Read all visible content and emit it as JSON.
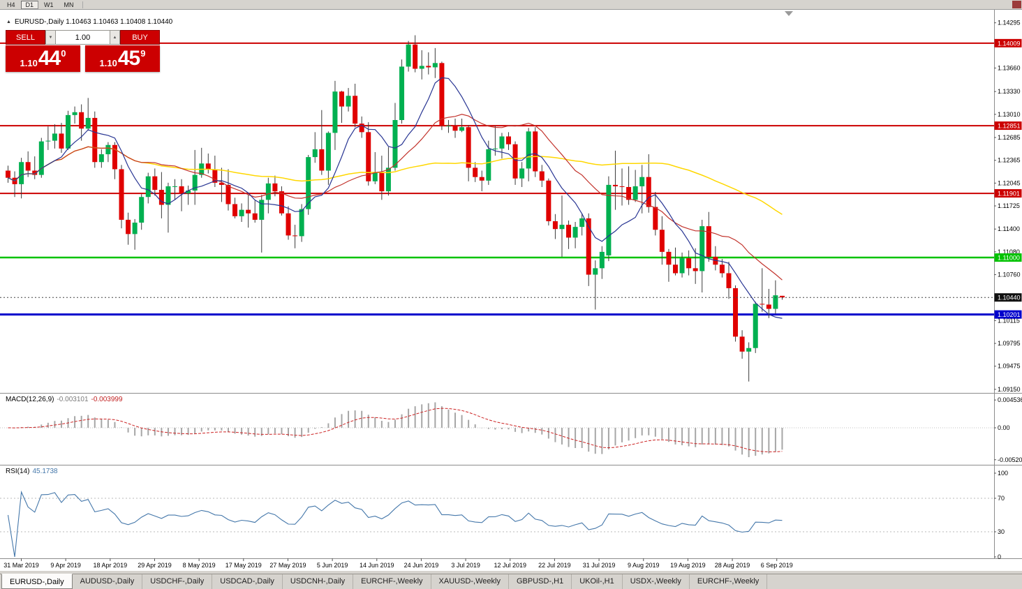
{
  "toolbar": {
    "timeframes": [
      {
        "label": "H4"
      },
      {
        "label": "D1"
      },
      {
        "label": "W1"
      },
      {
        "label": "MN"
      }
    ],
    "active_timeframe": "D1"
  },
  "chart": {
    "collapse_icon": "▲",
    "header_text": "EURUSD-,Daily 1.10463 1.10463 1.10408 1.10440"
  },
  "trade_panel": {
    "sell_label": "SELL",
    "buy_label": "BUY",
    "volume": "1.00",
    "sell_price": {
      "prefix": "1.10",
      "big": "44",
      "pip": "0"
    },
    "buy_price": {
      "prefix": "1.10",
      "big": "45",
      "pip": "9"
    },
    "panel_color": "#cc0001"
  },
  "indicators": {
    "macd": {
      "label": "MACD(12,26,9)",
      "value": "-0.003101",
      "signal_value": "-0.003999"
    },
    "rsi": {
      "label": "RSI(14)",
      "value": "45.1738"
    }
  },
  "bottom_tabs": {
    "active_index": 0,
    "items": [
      "EURUSD-,Daily",
      "AUDUSD-,Daily",
      "USDCHF-,Daily",
      "USDCAD-,Daily",
      "USDCNH-,Daily",
      "EURCHF-,Weekly",
      "XAUUSD-,Weekly",
      "GBPUSD-,H1",
      "UKOil-,H1",
      "USDX-,Weekly",
      "EURCHF-,Weekly"
    ]
  },
  "chart_data": {
    "type": "candlestick",
    "symbol": "EURUSD",
    "timeframe": "Daily",
    "ylim": [
      1.0911,
      1.1437
    ],
    "colors": {
      "bull": "#00B050",
      "bear": "#E00000",
      "wick": "#3a3a3a"
    },
    "current_price": {
      "value": 1.1044,
      "label": "1.10440"
    },
    "hlines": [
      {
        "price": 1.14009,
        "label": "1.14009",
        "color": "#cc0000",
        "width": 2
      },
      {
        "price": 1.12851,
        "label": "1.12851",
        "color": "#cc0000",
        "width": 2
      },
      {
        "price": 1.11901,
        "label": "1.11901",
        "color": "#cc0000",
        "width": 2
      },
      {
        "price": 1.11,
        "label": "1.11000",
        "color": "#00c200",
        "width": 2.5
      },
      {
        "price": 1.10201,
        "label": "1.10201",
        "color": "#0000cc",
        "width": 3
      }
    ],
    "price_ticks": [
      1.14295,
      1.1366,
      1.1333,
      1.1301,
      1.12685,
      1.12365,
      1.12045,
      1.11725,
      1.114,
      1.1108,
      1.1076,
      1.10115,
      1.09795,
      1.09475,
      1.0915
    ],
    "date_ticks": [
      "31 Mar 2019",
      "9 Apr 2019",
      "18 Apr 2019",
      "29 Apr 2019",
      "8 May 2019",
      "17 May 2019",
      "27 May 2019",
      "5 Jun 2019",
      "14 Jun 2019",
      "24 Jun 2019",
      "3 Jul 2019",
      "12 Jul 2019",
      "22 Jul 2019",
      "31 Jul 2019",
      "9 Aug 2019",
      "19 Aug 2019",
      "28 Aug 2019",
      "6 Sep 2019"
    ],
    "moving_averages": [
      {
        "name": "ma-fast-line",
        "type": "sma",
        "period": 8,
        "color": "#283593",
        "width": 1.2
      },
      {
        "name": "ma-medium-line",
        "type": "sma",
        "period": 21,
        "color": "#c2322b",
        "width": 1.2
      },
      {
        "name": "ma-slow-line",
        "type": "sma",
        "period": 55,
        "color": "#ffd700",
        "width": 1.5
      }
    ],
    "macd": {
      "fast": 12,
      "slow": 26,
      "signal": 9,
      "ylim": [
        -0.0058,
        0.00535
      ],
      "histogram_color": "#a6a6a6",
      "signal_color": "#cc2222",
      "axis": [
        {
          "value": 0.004536,
          "label": "0.004536"
        },
        {
          "value": 0,
          "label": "0.00"
        },
        {
          "value": -0.005205,
          "label": "-0.005205"
        }
      ]
    },
    "rsi": {
      "period": 14,
      "levels": [
        70,
        30
      ],
      "color": "#4477aa",
      "axis": [
        {
          "value": 100,
          "label": "100"
        },
        {
          "value": 70,
          "label": "70"
        },
        {
          "value": 30,
          "label": "30"
        },
        {
          "value": 0,
          "label": "0"
        }
      ]
    },
    "ohlc": [
      [
        1.1222,
        1.1229,
        1.1205,
        1.1212
      ],
      [
        1.1212,
        1.1221,
        1.1185,
        1.1203
      ],
      [
        1.1203,
        1.124,
        1.1183,
        1.1234
      ],
      [
        1.1234,
        1.1249,
        1.1213,
        1.1222
      ],
      [
        1.1222,
        1.1242,
        1.121,
        1.1216
      ],
      [
        1.1216,
        1.1268,
        1.1212,
        1.1263
      ],
      [
        1.1263,
        1.1284,
        1.1251,
        1.1264
      ],
      [
        1.1264,
        1.1287,
        1.1253,
        1.1274
      ],
      [
        1.1274,
        1.1289,
        1.1247,
        1.1253
      ],
      [
        1.1253,
        1.1306,
        1.1251,
        1.13
      ],
      [
        1.13,
        1.1312,
        1.1288,
        1.1304
      ],
      [
        1.1304,
        1.1315,
        1.1264,
        1.1281
      ],
      [
        1.1281,
        1.1324,
        1.1278,
        1.1296
      ],
      [
        1.1296,
        1.1305,
        1.1226,
        1.1234
      ],
      [
        1.1234,
        1.1252,
        1.1226,
        1.1245
      ],
      [
        1.1245,
        1.1262,
        1.1234,
        1.1258
      ],
      [
        1.1258,
        1.1262,
        1.121,
        1.1224
      ],
      [
        1.1224,
        1.123,
        1.1141,
        1.1153
      ],
      [
        1.1153,
        1.1163,
        1.1118,
        1.1133
      ],
      [
        1.1133,
        1.1154,
        1.1111,
        1.1149
      ],
      [
        1.1149,
        1.1189,
        1.1139,
        1.1185
      ],
      [
        1.1185,
        1.1219,
        1.1176,
        1.1214
      ],
      [
        1.1214,
        1.1225,
        1.1187,
        1.1195
      ],
      [
        1.1195,
        1.122,
        1.1155,
        1.1174
      ],
      [
        1.1174,
        1.1205,
        1.1135,
        1.12
      ],
      [
        1.12,
        1.121,
        1.1181,
        1.12
      ],
      [
        1.12,
        1.121,
        1.1165,
        1.119
      ],
      [
        1.119,
        1.1201,
        1.1174,
        1.1194
      ],
      [
        1.1194,
        1.1251,
        1.1174,
        1.1216
      ],
      [
        1.1216,
        1.1254,
        1.1212,
        1.1232
      ],
      [
        1.1232,
        1.1246,
        1.1218,
        1.1224
      ],
      [
        1.1224,
        1.1243,
        1.1199,
        1.1205
      ],
      [
        1.1205,
        1.1226,
        1.1178,
        1.1202
      ],
      [
        1.1202,
        1.1224,
        1.1166,
        1.1175
      ],
      [
        1.1175,
        1.1184,
        1.1155,
        1.1158
      ],
      [
        1.1158,
        1.1176,
        1.115,
        1.1167
      ],
      [
        1.1167,
        1.1188,
        1.1142,
        1.1162
      ],
      [
        1.1162,
        1.118,
        1.1149,
        1.1153
      ],
      [
        1.1153,
        1.1188,
        1.1107,
        1.1181
      ],
      [
        1.1181,
        1.1212,
        1.1162,
        1.1204
      ],
      [
        1.1204,
        1.1215,
        1.1186,
        1.1193
      ],
      [
        1.1193,
        1.12,
        1.1159,
        1.1162
      ],
      [
        1.1162,
        1.1172,
        1.1125,
        1.1131
      ],
      [
        1.1131,
        1.1146,
        1.1113,
        1.113
      ],
      [
        1.113,
        1.1175,
        1.1122,
        1.1168
      ],
      [
        1.1168,
        1.1244,
        1.116,
        1.1241
      ],
      [
        1.1241,
        1.1276,
        1.1233,
        1.1252
      ],
      [
        1.1252,
        1.1307,
        1.1216,
        1.1222
      ],
      [
        1.1222,
        1.1277,
        1.1202,
        1.1275
      ],
      [
        1.1275,
        1.1348,
        1.1251,
        1.1333
      ],
      [
        1.1333,
        1.1334,
        1.1289,
        1.1312
      ],
      [
        1.1312,
        1.1338,
        1.1305,
        1.1327
      ],
      [
        1.1327,
        1.1344,
        1.1283,
        1.1288
      ],
      [
        1.1288,
        1.1298,
        1.1268,
        1.1276
      ],
      [
        1.1276,
        1.129,
        1.1201,
        1.1207
      ],
      [
        1.1207,
        1.1248,
        1.1203,
        1.1219
      ],
      [
        1.1219,
        1.1243,
        1.1181,
        1.1193
      ],
      [
        1.1193,
        1.1255,
        1.1187,
        1.1226
      ],
      [
        1.1226,
        1.1317,
        1.1222,
        1.1293
      ],
      [
        1.1293,
        1.1378,
        1.1288,
        1.1368
      ],
      [
        1.1368,
        1.1404,
        1.1361,
        1.1399
      ],
      [
        1.1399,
        1.1412,
        1.136,
        1.1365
      ],
      [
        1.1365,
        1.1391,
        1.135,
        1.1369
      ],
      [
        1.1369,
        1.1388,
        1.1357,
        1.1367
      ],
      [
        1.1367,
        1.1394,
        1.1352,
        1.1373
      ],
      [
        1.1373,
        1.1375,
        1.1279,
        1.1285
      ],
      [
        1.1285,
        1.1293,
        1.1275,
        1.1285
      ],
      [
        1.1285,
        1.1295,
        1.1268,
        1.1278
      ],
      [
        1.1278,
        1.1295,
        1.1276,
        1.1283
      ],
      [
        1.1283,
        1.1286,
        1.1207,
        1.1226
      ],
      [
        1.1226,
        1.1234,
        1.1206,
        1.1213
      ],
      [
        1.1213,
        1.1222,
        1.1193,
        1.1208
      ],
      [
        1.1208,
        1.1264,
        1.1202,
        1.1252
      ],
      [
        1.1252,
        1.1285,
        1.1243,
        1.1253
      ],
      [
        1.1253,
        1.1275,
        1.1239,
        1.127
      ],
      [
        1.127,
        1.1276,
        1.1251,
        1.1259
      ],
      [
        1.1259,
        1.1263,
        1.1202,
        1.1211
      ],
      [
        1.1211,
        1.1234,
        1.1199,
        1.1225
      ],
      [
        1.1225,
        1.1282,
        1.1207,
        1.1277
      ],
      [
        1.1277,
        1.1283,
        1.1213,
        1.1221
      ],
      [
        1.1221,
        1.123,
        1.1199,
        1.1208
      ],
      [
        1.1208,
        1.1211,
        1.1145,
        1.1151
      ],
      [
        1.1151,
        1.1161,
        1.1126,
        1.114
      ],
      [
        1.114,
        1.1187,
        1.1101,
        1.1146
      ],
      [
        1.1146,
        1.1152,
        1.1112,
        1.1128
      ],
      [
        1.1128,
        1.115,
        1.1113,
        1.1143
      ],
      [
        1.1143,
        1.1162,
        1.1131,
        1.1155
      ],
      [
        1.1155,
        1.1162,
        1.106,
        1.1076
      ],
      [
        1.1076,
        1.1096,
        1.1027,
        1.1085
      ],
      [
        1.1085,
        1.1116,
        1.107,
        1.1108
      ],
      [
        1.1103,
        1.1214,
        1.1095,
        1.1202
      ],
      [
        1.1202,
        1.125,
        1.1167,
        1.12
      ],
      [
        1.12,
        1.1225,
        1.1173,
        1.1199
      ],
      [
        1.1199,
        1.1228,
        1.1174,
        1.1181
      ],
      [
        1.1181,
        1.1223,
        1.1178,
        1.12
      ],
      [
        1.12,
        1.123,
        1.1162,
        1.1213
      ],
      [
        1.1213,
        1.1245,
        1.1163,
        1.1171
      ],
      [
        1.1171,
        1.1192,
        1.1131,
        1.1139
      ],
      [
        1.1139,
        1.1158,
        1.109,
        1.1108
      ],
      [
        1.1108,
        1.1112,
        1.1066,
        1.109
      ],
      [
        1.109,
        1.1114,
        1.1075,
        1.1078
      ],
      [
        1.1078,
        1.1107,
        1.1072,
        1.1099
      ],
      [
        1.1099,
        1.111,
        1.1075,
        1.1085
      ],
      [
        1.1085,
        1.1113,
        1.1063,
        1.1081
      ],
      [
        1.1081,
        1.1153,
        1.1051,
        1.1144
      ],
      [
        1.1144,
        1.1164,
        1.1094,
        1.1101
      ],
      [
        1.1101,
        1.1116,
        1.1082,
        1.109
      ],
      [
        1.109,
        1.1098,
        1.1072,
        1.1078
      ],
      [
        1.1078,
        1.1094,
        1.1042,
        1.1057
      ],
      [
        1.1057,
        1.1061,
        1.0982,
        1.0989
      ],
      [
        1.0989,
        1.0998,
        1.0958,
        1.0968
      ],
      [
        1.0968,
        1.0981,
        1.0926,
        1.0973
      ],
      [
        1.0973,
        1.1038,
        1.0966,
        1.1035
      ],
      [
        1.1035,
        1.1085,
        1.1024,
        1.1034
      ],
      [
        1.1034,
        1.1056,
        1.1015,
        1.1028
      ],
      [
        1.1028,
        1.1068,
        1.1021,
        1.1047
      ],
      [
        1.10463,
        1.10463,
        1.10408,
        1.1044
      ]
    ]
  }
}
